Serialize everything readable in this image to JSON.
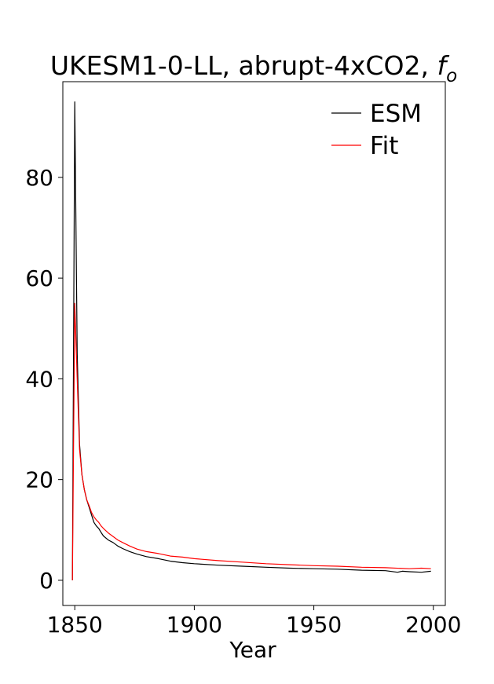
{
  "chart_data": {
    "type": "line",
    "title": "UKESM1-0-LL, abrupt-4xCO2, f_o",
    "title_main": "UKESM1-0-LL, abrupt-4xCO2, ",
    "title_symbol": "f",
    "title_subscript": "o",
    "xlabel": "Year",
    "ylabel": "",
    "xlim": [
      1845,
      2005
    ],
    "ylim": [
      -5,
      99
    ],
    "xticks": [
      1850,
      1900,
      1950,
      2000
    ],
    "yticks": [
      0,
      20,
      40,
      60,
      80
    ],
    "grid": false,
    "legend_position": "top-right",
    "series": [
      {
        "name": "ESM",
        "color": "#000000",
        "x": [
          1849,
          1850,
          1851,
          1852,
          1853,
          1854,
          1855,
          1856,
          1857,
          1858,
          1859,
          1860,
          1861,
          1862,
          1864,
          1866,
          1868,
          1870,
          1873,
          1876,
          1880,
          1885,
          1890,
          1895,
          1900,
          1910,
          1920,
          1930,
          1940,
          1950,
          1960,
          1970,
          1980,
          1985,
          1987,
          1990,
          1995,
          1999
        ],
        "y": [
          0,
          95,
          45,
          27,
          21,
          18,
          16,
          14.5,
          13,
          11.5,
          10.8,
          10.3,
          9.5,
          8.8,
          8.0,
          7.5,
          6.8,
          6.3,
          5.7,
          5.2,
          4.7,
          4.3,
          3.8,
          3.5,
          3.3,
          3.0,
          2.8,
          2.6,
          2.4,
          2.3,
          2.2,
          2.0,
          1.9,
          1.6,
          1.8,
          1.7,
          1.6,
          1.8
        ]
      },
      {
        "name": "Fit",
        "color": "#ff0000",
        "x": [
          1849,
          1850,
          1851,
          1852,
          1853,
          1854,
          1855,
          1856,
          1857,
          1858,
          1859,
          1860,
          1861,
          1862,
          1864,
          1866,
          1868,
          1870,
          1873,
          1876,
          1880,
          1885,
          1890,
          1895,
          1900,
          1910,
          1920,
          1930,
          1940,
          1950,
          1960,
          1970,
          1980,
          1990,
          1995,
          1999
        ],
        "y": [
          0,
          55,
          40,
          26,
          21,
          18,
          16,
          14.8,
          13.5,
          12.6,
          12.0,
          11.5,
          10.8,
          10.3,
          9.4,
          8.7,
          8.0,
          7.5,
          6.8,
          6.2,
          5.7,
          5.3,
          4.8,
          4.6,
          4.3,
          3.9,
          3.6,
          3.3,
          3.1,
          2.9,
          2.8,
          2.6,
          2.5,
          2.3,
          2.4,
          2.3
        ]
      }
    ]
  }
}
